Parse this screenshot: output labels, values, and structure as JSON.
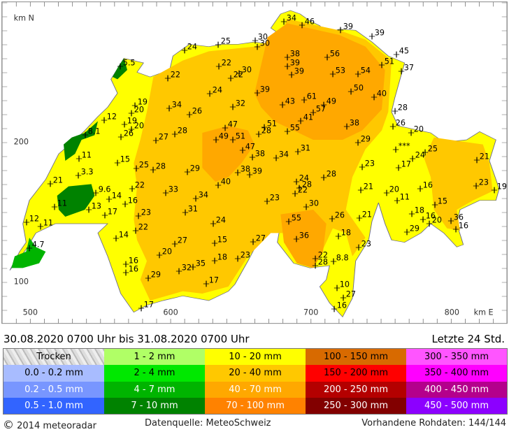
{
  "map": {
    "axis_y_label": "km N",
    "axis_x_label": "km E",
    "x_ticks": [
      "500",
      "600",
      "700",
      "800"
    ],
    "y_ticks": [
      "200",
      "100"
    ],
    "stations": [
      "34",
      "46",
      "39",
      "39",
      "24",
      "25",
      "30",
      "30",
      "45",
      "5.5",
      "22",
      "22",
      "22",
      "30",
      "38",
      "39",
      "39",
      "56",
      "54",
      "51",
      "37",
      "53",
      "50",
      "40",
      "24",
      "39",
      "19",
      "20",
      "34",
      "26",
      "32",
      "43",
      "61",
      "49",
      "57",
      "41",
      "28",
      "12",
      "19",
      "20",
      "26",
      "8.1",
      "27",
      "28",
      "47",
      "49",
      "51",
      "51",
      "28",
      "55",
      "38",
      "26",
      "20",
      "47",
      "38",
      "34",
      "31",
      "29",
      "***",
      "25",
      "24",
      "17",
      "21",
      "11",
      "15",
      "25",
      "28",
      "29",
      "38",
      "39",
      "24",
      "28",
      "22",
      "28",
      "23",
      "3.3",
      "21",
      "22",
      "9.6",
      "14",
      "16",
      "33",
      "34",
      "40",
      "21",
      "20",
      "11",
      "16",
      "23",
      "19",
      "11",
      "13",
      "17",
      "23",
      "31",
      "23",
      "30",
      "15",
      "12",
      "11",
      "22",
      "24",
      "26",
      "21",
      "55",
      "18",
      "16",
      "20",
      "36",
      "16",
      "29",
      "14",
      "27",
      "18",
      "36",
      "27",
      "15",
      "4.7",
      "23",
      "16",
      "20",
      "18",
      "23",
      "22",
      "28",
      "8.8",
      "16",
      "35",
      "32",
      "29",
      "17",
      "10",
      "27",
      "17",
      "16"
    ]
  },
  "header": {
    "period": "30.08.2020 0700 Uhr   bis   31.08.2020 0700 Uhr",
    "window": "Letzte 24 Std."
  },
  "legend": [
    {
      "label": "Trocken",
      "color": "#d8d8d8",
      "text": "#000"
    },
    {
      "label": "1 - 2 mm",
      "color": "#b0ff66",
      "text": "#000"
    },
    {
      "label": "10 - 20 mm",
      "color": "#ffff00",
      "text": "#000"
    },
    {
      "label": "100 - 150 mm",
      "color": "#d86a00",
      "text": "#000"
    },
    {
      "label": "300 - 350 mm",
      "color": "#ff55ff",
      "text": "#000"
    },
    {
      "label": "0.0 - 0.2 mm",
      "color": "#a8bcff",
      "text": "#000"
    },
    {
      "label": "2 - 4 mm",
      "color": "#00e800",
      "text": "#000"
    },
    {
      "label": "20 - 40 mm",
      "color": "#ffc800",
      "text": "#000"
    },
    {
      "label": "150 - 200 mm",
      "color": "#ff0000",
      "text": "#000"
    },
    {
      "label": "350 - 400 mm",
      "color": "#ff00ff",
      "text": "#000"
    },
    {
      "label": "0.2 - 0.5 mm",
      "color": "#7896ff",
      "text": "#fff"
    },
    {
      "label": "4 - 7 mm",
      "color": "#00b400",
      "text": "#fff"
    },
    {
      "label": "40 - 70 mm",
      "color": "#ffa800",
      "text": "#fff"
    },
    {
      "label": "200 - 250 mm",
      "color": "#b40000",
      "text": "#fff"
    },
    {
      "label": "400 - 450 mm",
      "color": "#b4008c",
      "text": "#fff"
    },
    {
      "label": "0.5 - 1.0 mm",
      "color": "#3264ff",
      "text": "#fff"
    },
    {
      "label": "7 - 10 mm",
      "color": "#008200",
      "text": "#fff"
    },
    {
      "label": "70 - 100 mm",
      "color": "#ff8200",
      "text": "#fff"
    },
    {
      "label": "250 - 300 mm",
      "color": "#820000",
      "text": "#fff"
    },
    {
      "label": "450 - 500 mm",
      "color": "#8c00ff",
      "text": "#fff"
    }
  ],
  "footer": {
    "copyright_symbol": "©",
    "copyright": "2014  meteoradar",
    "source": "Datenquelle: MeteoSchweiz",
    "raw": "Vorhandene Rohdaten: 144/144"
  }
}
